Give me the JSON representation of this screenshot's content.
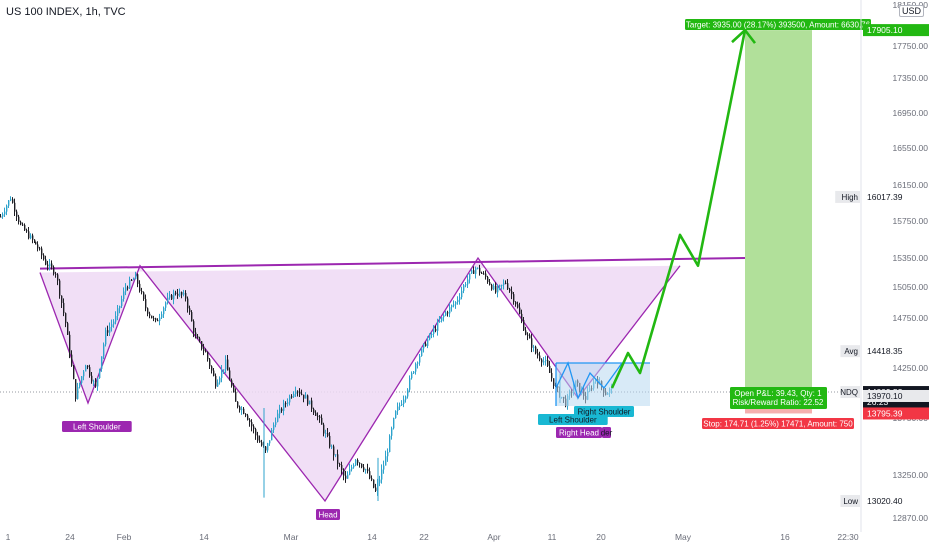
{
  "header": {
    "symbol_title": "US 100 INDEX, 1h, TVC",
    "currency_button": "USD"
  },
  "colors": {
    "up": "#2ea3cc",
    "down": "#1e1e24",
    "pattern_line": "#9c27b0",
    "pattern_fill": "#efd9f4",
    "neckline": "#9c27b0",
    "forecast": "#22b812",
    "target_zone": "#a8dd8f",
    "stop_zone": "#f4a6a6",
    "label_purple": "#9c27b0",
    "label_cyan": "#19b8d3",
    "box_fill": "#b8d8f0",
    "box_line": "#2196f3",
    "axis_text": "#6a6d78"
  },
  "price_axis": {
    "ticks": [
      "18150.00",
      "17750.00",
      "17350.00",
      "16950.00",
      "16550.00",
      "16150.00",
      "15750.00",
      "15350.00",
      "15050.00",
      "14750.00",
      "14250.00",
      "13750.00",
      "13250.00",
      "12870.00"
    ],
    "labels": [
      {
        "name": "price-label-target",
        "text": "17905.10",
        "style": "green"
      },
      {
        "name": "price-label-high",
        "prefix": "High",
        "text": "16017.39",
        "style": "plain"
      },
      {
        "name": "price-label-avg",
        "prefix": "Avg",
        "text": "14418.35",
        "style": "plain"
      },
      {
        "name": "price-label-ndq",
        "prefix": "NDQ",
        "text": "14009.53",
        "sub": "26:23",
        "style": "dark"
      },
      {
        "name": "price-label-entry",
        "text": "13970.10",
        "style": "gray"
      },
      {
        "name": "price-label-stop",
        "text": "13795.39",
        "style": "red"
      },
      {
        "name": "price-label-low",
        "prefix": "Low",
        "text": "13020.40",
        "style": "plain"
      }
    ]
  },
  "time_axis": {
    "ticks": [
      "1",
      "24",
      "Feb",
      "14",
      "Mar",
      "14",
      "22",
      "Apr",
      "11",
      "20",
      "May",
      "16",
      "22:30"
    ]
  },
  "annotations": {
    "left_shoulder": "Left Shoulder",
    "head": "Head",
    "right_shoulder_small_left": "Left Shoulder",
    "right_head": "Right Head",
    "right_head_tail": "der",
    "right_shoulder": "Right Shoulder"
  },
  "position": {
    "target_text": "Target: 3935.00 (28.17%) 393500, Amount: 6630.76",
    "pnl_text": "Open P&L: 39.43, Qty: 1",
    "rr_text": "Risk/Reward Ratio: 22.52",
    "stop_text": "Stop: 174.71 (1.25%) 17471, Amount: 750"
  },
  "chart_data": {
    "type": "candlestick",
    "title": "US 100 INDEX, 1h, TVC",
    "ylim": [
      12870,
      18150
    ],
    "y_ticks": [
      18150,
      17750,
      17350,
      16950,
      16550,
      16150,
      15750,
      15350,
      15050,
      14750,
      14250,
      13750,
      13250,
      12870
    ],
    "x_ticks": [
      "1",
      "24",
      "Feb",
      "14",
      "Mar",
      "14",
      "22",
      "Apr",
      "11",
      "20",
      "May",
      "16",
      "22:30"
    ],
    "series_close_path": [
      [
        0,
        15800
      ],
      [
        10,
        16010
      ],
      [
        20,
        15700
      ],
      [
        35,
        15500
      ],
      [
        45,
        15300
      ],
      [
        55,
        15200
      ],
      [
        65,
        14700
      ],
      [
        75,
        13970
      ],
      [
        85,
        14300
      ],
      [
        95,
        14050
      ],
      [
        105,
        14600
      ],
      [
        115,
        14750
      ],
      [
        125,
        15050
      ],
      [
        135,
        15150
      ],
      [
        145,
        14850
      ],
      [
        155,
        14700
      ],
      [
        165,
        14900
      ],
      [
        175,
        15000
      ],
      [
        185,
        14950
      ],
      [
        195,
        14550
      ],
      [
        205,
        14400
      ],
      [
        215,
        14100
      ],
      [
        225,
        14300
      ],
      [
        235,
        13900
      ],
      [
        245,
        13800
      ],
      [
        255,
        13600
      ],
      [
        265,
        13450
      ],
      [
        275,
        13750
      ],
      [
        285,
        13900
      ],
      [
        295,
        14050
      ],
      [
        305,
        13950
      ],
      [
        315,
        13800
      ],
      [
        325,
        13600
      ],
      [
        335,
        13400
      ],
      [
        345,
        13200
      ],
      [
        355,
        13400
      ],
      [
        365,
        13300
      ],
      [
        375,
        13100
      ],
      [
        385,
        13400
      ],
      [
        395,
        13800
      ],
      [
        405,
        14000
      ],
      [
        415,
        14300
      ],
      [
        425,
        14500
      ],
      [
        435,
        14650
      ],
      [
        445,
        14800
      ],
      [
        455,
        14900
      ],
      [
        465,
        15100
      ],
      [
        475,
        15250
      ],
      [
        485,
        15150
      ],
      [
        495,
        15000
      ],
      [
        505,
        15100
      ],
      [
        515,
        14900
      ],
      [
        525,
        14600
      ],
      [
        535,
        14400
      ],
      [
        545,
        14300
      ],
      [
        555,
        14050
      ],
      [
        565,
        13900
      ],
      [
        575,
        14100
      ],
      [
        585,
        13950
      ],
      [
        595,
        14150
      ],
      [
        605,
        14000
      ],
      [
        612,
        14050
      ]
    ],
    "inverse_hs_pattern": [
      [
        40,
        15200
      ],
      [
        88,
        13900
      ],
      [
        140,
        15270
      ],
      [
        325,
        13020
      ],
      [
        478,
        15350
      ],
      [
        578,
        13950
      ],
      [
        680,
        15270
      ]
    ],
    "neckline": [
      [
        40,
        15240
      ],
      [
        745,
        15350
      ]
    ],
    "small_pattern": [
      [
        556,
        14050
      ],
      [
        568,
        14300
      ],
      [
        578,
        13950
      ],
      [
        590,
        14200
      ],
      [
        604,
        14050
      ],
      [
        622,
        14300
      ]
    ],
    "forecast_path": [
      [
        612,
        14050
      ],
      [
        628,
        14400
      ],
      [
        640,
        14200
      ],
      [
        680,
        15600
      ],
      [
        698,
        15270
      ],
      [
        745,
        17905
      ]
    ],
    "position": {
      "entry": 13970.1,
      "target": 17905.1,
      "stop": 13795.39,
      "target_pct": "28.17%",
      "stop_pct": "1.25%",
      "risk_reward": 22.52
    },
    "high": 16017.39,
    "avg": 14418.35,
    "low": 13020.4,
    "last": 14009.53
  }
}
